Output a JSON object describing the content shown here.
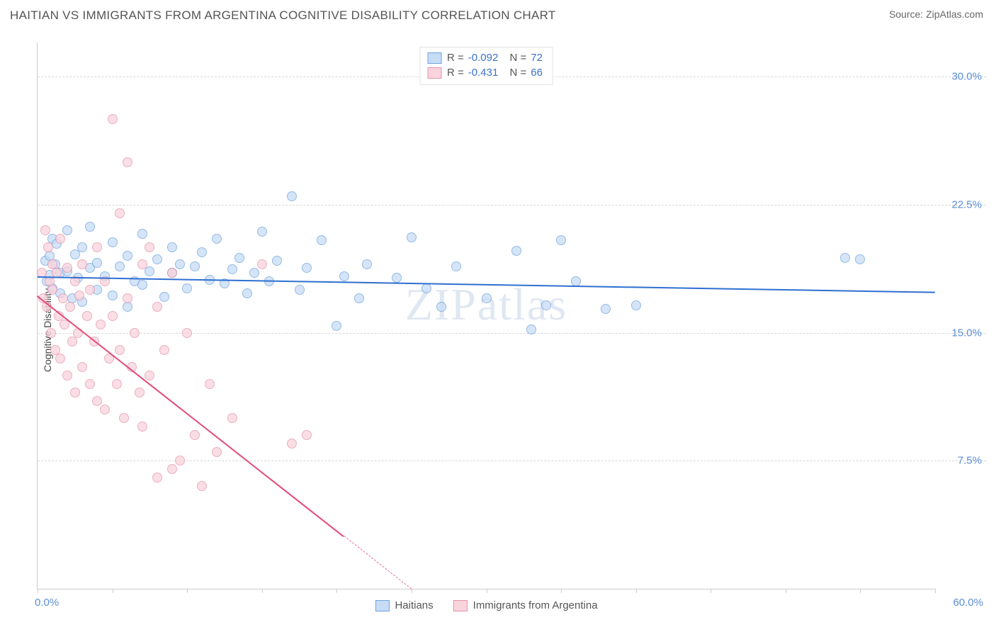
{
  "header": {
    "title": "HAITIAN VS IMMIGRANTS FROM ARGENTINA COGNITIVE DISABILITY CORRELATION CHART",
    "source_prefix": "Source: ",
    "source_name": "ZipAtlas.com"
  },
  "watermark": "ZIPatlas",
  "chart": {
    "type": "scatter",
    "ylabel": "Cognitive Disability",
    "xlim": [
      0,
      60
    ],
    "ylim": [
      0,
      32
    ],
    "background_color": "#ffffff",
    "grid_color": "#d8d8d8",
    "axis_color": "#cccccc",
    "tick_label_color": "#5b8dd6",
    "yticks": [
      {
        "v": 7.5,
        "label": "7.5%"
      },
      {
        "v": 15.0,
        "label": "15.0%"
      },
      {
        "v": 22.5,
        "label": "22.5%"
      },
      {
        "v": 30.0,
        "label": "30.0%"
      }
    ],
    "xticks_major": [
      0,
      10,
      20,
      30,
      40,
      50,
      60
    ],
    "xticks_minor": [
      5,
      15,
      25,
      35,
      45,
      55
    ],
    "xaxis_left_label": "0.0%",
    "xaxis_right_label": "60.0%",
    "series": [
      {
        "id": "haitians",
        "label": "Haitians",
        "R_label": "R =",
        "R": "-0.092",
        "N_label": "N =",
        "N": "72",
        "fill": "#c7ddf5",
        "stroke": "#6fa3e0",
        "line_color": "#2f6fd0",
        "regression": {
          "x1": 0,
          "y1": 18.3,
          "x2": 60,
          "y2": 17.4
        },
        "points": [
          [
            0.5,
            19.2
          ],
          [
            0.6,
            18.0
          ],
          [
            0.8,
            19.5
          ],
          [
            0.8,
            18.4
          ],
          [
            1.0,
            20.5
          ],
          [
            1.0,
            17.6
          ],
          [
            1.2,
            19.0
          ],
          [
            1.3,
            20.2
          ],
          [
            1.5,
            18.5
          ],
          [
            1.5,
            17.3
          ],
          [
            2.0,
            21.0
          ],
          [
            2.0,
            18.6
          ],
          [
            2.3,
            17.0
          ],
          [
            2.5,
            19.6
          ],
          [
            2.7,
            18.2
          ],
          [
            3.0,
            20.0
          ],
          [
            3.0,
            16.8
          ],
          [
            3.5,
            18.8
          ],
          [
            3.5,
            21.2
          ],
          [
            4.0,
            19.1
          ],
          [
            4.0,
            17.5
          ],
          [
            4.5,
            18.3
          ],
          [
            5.0,
            20.3
          ],
          [
            5.0,
            17.2
          ],
          [
            5.5,
            18.9
          ],
          [
            6.0,
            19.5
          ],
          [
            6.0,
            16.5
          ],
          [
            6.5,
            18.0
          ],
          [
            7.0,
            20.8
          ],
          [
            7.0,
            17.8
          ],
          [
            7.5,
            18.6
          ],
          [
            8.0,
            19.3
          ],
          [
            8.5,
            17.1
          ],
          [
            9.0,
            18.5
          ],
          [
            9.0,
            20.0
          ],
          [
            9.5,
            19.0
          ],
          [
            10.0,
            17.6
          ],
          [
            10.5,
            18.9
          ],
          [
            11.0,
            19.7
          ],
          [
            11.5,
            18.1
          ],
          [
            12.0,
            20.5
          ],
          [
            12.5,
            17.9
          ],
          [
            13.0,
            18.7
          ],
          [
            13.5,
            19.4
          ],
          [
            14.0,
            17.3
          ],
          [
            14.5,
            18.5
          ],
          [
            15.0,
            20.9
          ],
          [
            15.5,
            18.0
          ],
          [
            16.0,
            19.2
          ],
          [
            17.0,
            23.0
          ],
          [
            17.5,
            17.5
          ],
          [
            18.0,
            18.8
          ],
          [
            19.0,
            20.4
          ],
          [
            20.0,
            15.4
          ],
          [
            20.5,
            18.3
          ],
          [
            21.5,
            17.0
          ],
          [
            22.0,
            19.0
          ],
          [
            24.0,
            18.2
          ],
          [
            25.0,
            20.6
          ],
          [
            26.0,
            17.6
          ],
          [
            27.0,
            16.5
          ],
          [
            28.0,
            18.9
          ],
          [
            30.0,
            17.0
          ],
          [
            32.0,
            19.8
          ],
          [
            33.0,
            15.2
          ],
          [
            34.0,
            16.6
          ],
          [
            35.0,
            20.4
          ],
          [
            36.0,
            18.0
          ],
          [
            38.0,
            16.4
          ],
          [
            40.0,
            16.6
          ],
          [
            54.0,
            19.4
          ],
          [
            55.0,
            19.3
          ]
        ]
      },
      {
        "id": "argentina",
        "label": "Immigrants from Argentina",
        "R_label": "R =",
        "R": "-0.431",
        "N_label": "N =",
        "N": "66",
        "fill": "#f9d4dd",
        "stroke": "#e593aa",
        "line_color": "#e24b78",
        "regression": {
          "x1": 0,
          "y1": 17.2,
          "x2": 25,
          "y2": 0
        },
        "regression_dashed_ext": {
          "x1": 20.5,
          "y1": 3.1,
          "x2": 25,
          "y2": 0
        },
        "points": [
          [
            0.3,
            18.5
          ],
          [
            0.4,
            17.0
          ],
          [
            0.5,
            21.0
          ],
          [
            0.6,
            16.5
          ],
          [
            0.7,
            20.0
          ],
          [
            0.8,
            18.0
          ],
          [
            0.9,
            15.0
          ],
          [
            1.0,
            19.0
          ],
          [
            1.0,
            17.5
          ],
          [
            1.2,
            14.0
          ],
          [
            1.3,
            18.5
          ],
          [
            1.4,
            16.0
          ],
          [
            1.5,
            20.5
          ],
          [
            1.5,
            13.5
          ],
          [
            1.7,
            17.0
          ],
          [
            1.8,
            15.5
          ],
          [
            2.0,
            18.8
          ],
          [
            2.0,
            12.5
          ],
          [
            2.2,
            16.5
          ],
          [
            2.3,
            14.5
          ],
          [
            2.5,
            18.0
          ],
          [
            2.5,
            11.5
          ],
          [
            2.7,
            15.0
          ],
          [
            2.8,
            17.2
          ],
          [
            3.0,
            13.0
          ],
          [
            3.0,
            19.0
          ],
          [
            3.3,
            16.0
          ],
          [
            3.5,
            12.0
          ],
          [
            3.5,
            17.5
          ],
          [
            3.8,
            14.5
          ],
          [
            4.0,
            20.0
          ],
          [
            4.0,
            11.0
          ],
          [
            4.2,
            15.5
          ],
          [
            4.5,
            18.0
          ],
          [
            4.5,
            10.5
          ],
          [
            4.8,
            13.5
          ],
          [
            5.0,
            27.5
          ],
          [
            5.0,
            16.0
          ],
          [
            5.3,
            12.0
          ],
          [
            5.5,
            22.0
          ],
          [
            5.5,
            14.0
          ],
          [
            5.8,
            10.0
          ],
          [
            6.0,
            25.0
          ],
          [
            6.0,
            17.0
          ],
          [
            6.3,
            13.0
          ],
          [
            6.5,
            15.0
          ],
          [
            6.8,
            11.5
          ],
          [
            7.0,
            19.0
          ],
          [
            7.0,
            9.5
          ],
          [
            7.5,
            20.0
          ],
          [
            7.5,
            12.5
          ],
          [
            8.0,
            16.5
          ],
          [
            8.0,
            6.5
          ],
          [
            8.5,
            14.0
          ],
          [
            9.0,
            18.5
          ],
          [
            9.0,
            7.0
          ],
          [
            9.5,
            7.5
          ],
          [
            10.0,
            15.0
          ],
          [
            10.5,
            9.0
          ],
          [
            11.0,
            6.0
          ],
          [
            11.5,
            12.0
          ],
          [
            12.0,
            8.0
          ],
          [
            13.0,
            10.0
          ],
          [
            15.0,
            19.0
          ],
          [
            17.0,
            8.5
          ],
          [
            18.0,
            9.0
          ]
        ]
      }
    ],
    "legend_bottom": [
      {
        "series": 0
      },
      {
        "series": 1
      }
    ]
  }
}
